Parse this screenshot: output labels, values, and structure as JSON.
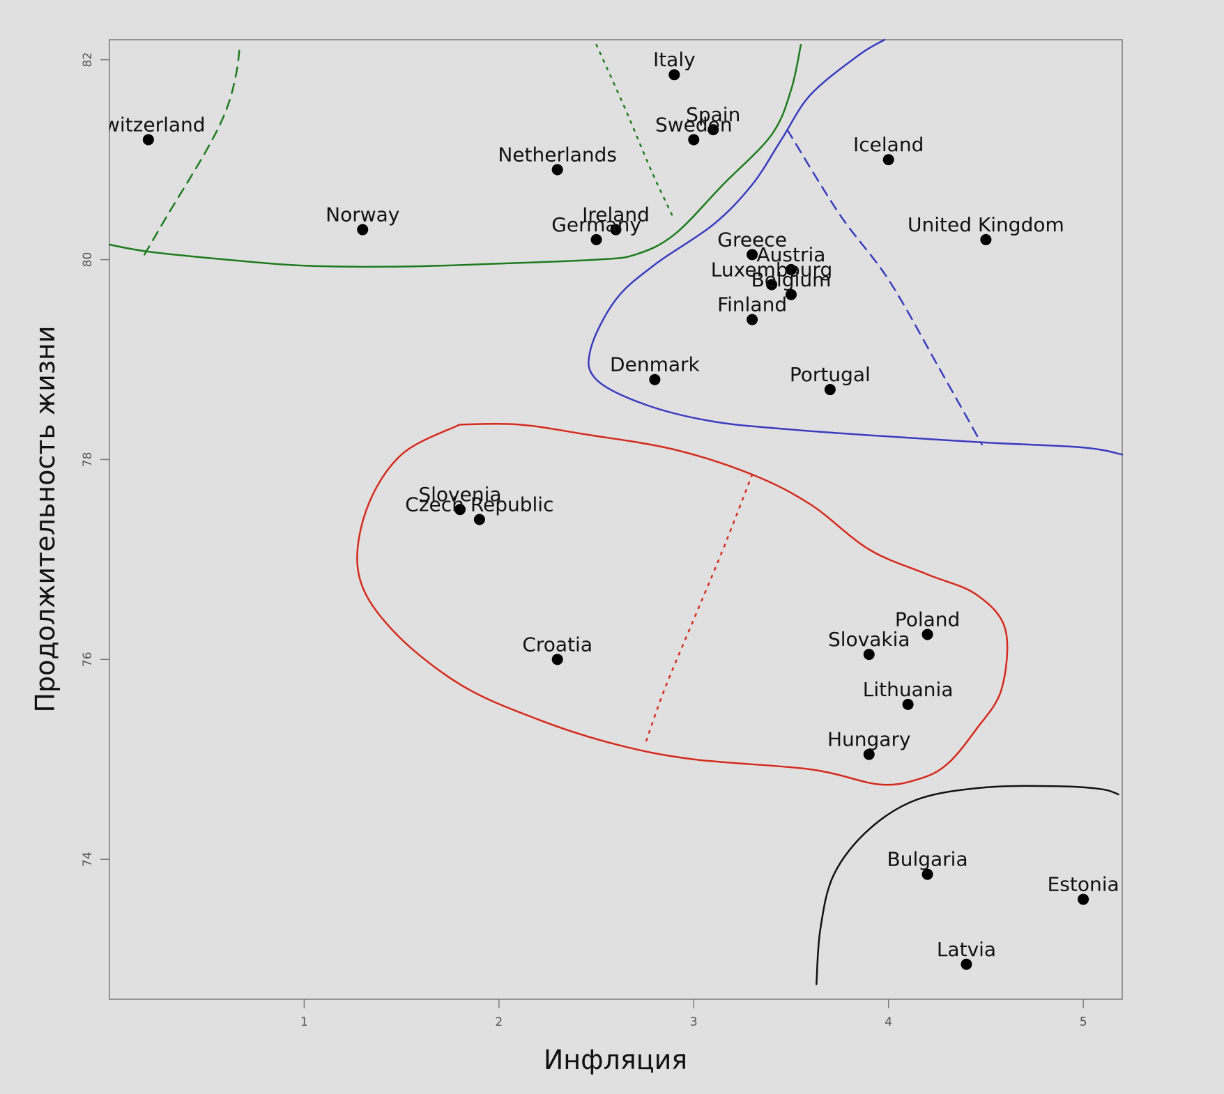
{
  "chart_data": {
    "type": "scatter",
    "xlabel": "Инфляция",
    "ylabel": "Продолжительность жизни",
    "xlim": [
      0,
      5.2
    ],
    "ylim": [
      72.6,
      82.2
    ],
    "x_ticks": [
      1,
      2,
      3,
      4,
      5
    ],
    "y_ticks": [
      74,
      76,
      78,
      80,
      82
    ],
    "grid": false,
    "points": [
      {
        "label": "Switzerland",
        "x": 0.2,
        "y": 81.2
      },
      {
        "label": "Norway",
        "x": 1.3,
        "y": 80.3
      },
      {
        "label": "Netherlands",
        "x": 2.3,
        "y": 80.9
      },
      {
        "label": "Italy",
        "x": 2.9,
        "y": 81.85
      },
      {
        "label": "Spain",
        "x": 3.1,
        "y": 81.3
      },
      {
        "label": "Sweden",
        "x": 3.0,
        "y": 81.2
      },
      {
        "label": "Iceland",
        "x": 4.0,
        "y": 81.0
      },
      {
        "label": "Ireland",
        "x": 2.6,
        "y": 80.3
      },
      {
        "label": "Germany",
        "x": 2.5,
        "y": 80.2
      },
      {
        "label": "United Kingdom",
        "x": 4.5,
        "y": 80.2
      },
      {
        "label": "Greece",
        "x": 3.3,
        "y": 80.05
      },
      {
        "label": "Austria",
        "x": 3.5,
        "y": 79.9
      },
      {
        "label": "Luxembourg",
        "x": 3.4,
        "y": 79.75
      },
      {
        "label": "Belgium",
        "x": 3.5,
        "y": 79.65
      },
      {
        "label": "Finland",
        "x": 3.3,
        "y": 79.4
      },
      {
        "label": "Denmark",
        "x": 2.8,
        "y": 78.8
      },
      {
        "label": "Portugal",
        "x": 3.7,
        "y": 78.7
      },
      {
        "label": "Slovenia",
        "x": 1.8,
        "y": 77.5
      },
      {
        "label": "Czech Republic",
        "x": 1.9,
        "y": 77.4
      },
      {
        "label": "Croatia",
        "x": 2.3,
        "y": 76.0
      },
      {
        "label": "Poland",
        "x": 4.2,
        "y": 76.25
      },
      {
        "label": "Slovakia",
        "x": 3.9,
        "y": 76.05
      },
      {
        "label": "Lithuania",
        "x": 4.1,
        "y": 75.55
      },
      {
        "label": "Hungary",
        "x": 3.9,
        "y": 75.05
      },
      {
        "label": "Bulgaria",
        "x": 4.2,
        "y": 73.85
      },
      {
        "label": "Estonia",
        "x": 5.0,
        "y": 73.6
      },
      {
        "label": "Latvia",
        "x": 4.4,
        "y": 72.95
      }
    ],
    "annotations": [
      {
        "name": "green-boundary",
        "color": "#1e7a1e",
        "style": "solid",
        "points": [
          [
            0,
            80.15
          ],
          [
            0.2,
            80.08
          ],
          [
            0.6,
            80.0
          ],
          [
            1.0,
            79.94
          ],
          [
            1.5,
            79.93
          ],
          [
            2.0,
            79.96
          ],
          [
            2.5,
            80.0
          ],
          [
            2.7,
            80.05
          ],
          [
            2.9,
            80.25
          ],
          [
            3.15,
            80.75
          ],
          [
            3.4,
            81.25
          ],
          [
            3.5,
            81.7
          ],
          [
            3.55,
            82.15
          ]
        ]
      },
      {
        "name": "green-divider-left",
        "color": "#1e7a1e",
        "style": "dashed",
        "points": [
          [
            0.18,
            80.05
          ],
          [
            0.3,
            80.45
          ],
          [
            0.5,
            81.1
          ],
          [
            0.6,
            81.5
          ],
          [
            0.65,
            81.85
          ],
          [
            0.67,
            82.15
          ]
        ]
      },
      {
        "name": "green-divider-right",
        "color": "#1e7a1e",
        "style": "dotted",
        "points": [
          [
            2.5,
            82.15
          ],
          [
            2.65,
            81.5
          ],
          [
            2.78,
            80.9
          ],
          [
            2.9,
            80.4
          ]
        ]
      },
      {
        "name": "blue-boundary",
        "color": "#3b3bbf",
        "style": "solid",
        "points": [
          [
            3.98,
            82.2
          ],
          [
            3.85,
            82.05
          ],
          [
            3.6,
            81.65
          ],
          [
            3.45,
            81.2
          ],
          [
            3.3,
            80.75
          ],
          [
            3.1,
            80.35
          ],
          [
            2.8,
            79.95
          ],
          [
            2.6,
            79.6
          ],
          [
            2.47,
            79.1
          ],
          [
            2.5,
            78.8
          ],
          [
            2.75,
            78.55
          ],
          [
            3.1,
            78.38
          ],
          [
            3.5,
            78.3
          ],
          [
            4.0,
            78.23
          ],
          [
            4.5,
            78.17
          ],
          [
            5.0,
            78.12
          ],
          [
            5.2,
            78.05
          ]
        ]
      },
      {
        "name": "blue-divider",
        "color": "#3b3bbf",
        "style": "dashed",
        "points": [
          [
            3.48,
            81.3
          ],
          [
            3.75,
            80.45
          ],
          [
            4.0,
            79.8
          ],
          [
            4.25,
            78.95
          ],
          [
            4.48,
            78.15
          ]
        ]
      },
      {
        "name": "red-boundary",
        "color": "#d42a1e",
        "style": "solid",
        "points": [
          [
            1.8,
            78.35
          ],
          [
            2.1,
            78.35
          ],
          [
            2.45,
            78.25
          ],
          [
            2.9,
            78.1
          ],
          [
            3.3,
            77.85
          ],
          [
            3.6,
            77.55
          ],
          [
            3.9,
            77.1
          ],
          [
            4.2,
            76.85
          ],
          [
            4.45,
            76.65
          ],
          [
            4.6,
            76.3
          ],
          [
            4.58,
            75.7
          ],
          [
            4.45,
            75.3
          ],
          [
            4.3,
            74.95
          ],
          [
            4.15,
            74.8
          ],
          [
            3.95,
            74.75
          ],
          [
            3.6,
            74.9
          ],
          [
            3.0,
            75.0
          ],
          [
            2.6,
            75.15
          ],
          [
            2.2,
            75.4
          ],
          [
            1.8,
            75.75
          ],
          [
            1.45,
            76.3
          ],
          [
            1.28,
            76.85
          ],
          [
            1.32,
            77.5
          ],
          [
            1.5,
            78.05
          ],
          [
            1.8,
            78.35
          ]
        ]
      },
      {
        "name": "red-divider",
        "color": "#d42a1e",
        "style": "dotted",
        "points": [
          [
            3.3,
            77.85
          ],
          [
            3.15,
            77.1
          ],
          [
            3.0,
            76.4
          ],
          [
            2.85,
            75.7
          ],
          [
            2.75,
            75.15
          ]
        ]
      },
      {
        "name": "black-boundary",
        "color": "#111111",
        "style": "solid",
        "points": [
          [
            3.63,
            72.75
          ],
          [
            3.65,
            73.3
          ],
          [
            3.72,
            73.85
          ],
          [
            3.9,
            74.3
          ],
          [
            4.15,
            74.6
          ],
          [
            4.5,
            74.72
          ],
          [
            4.9,
            74.73
          ],
          [
            5.1,
            74.7
          ],
          [
            5.18,
            74.65
          ]
        ]
      }
    ]
  }
}
